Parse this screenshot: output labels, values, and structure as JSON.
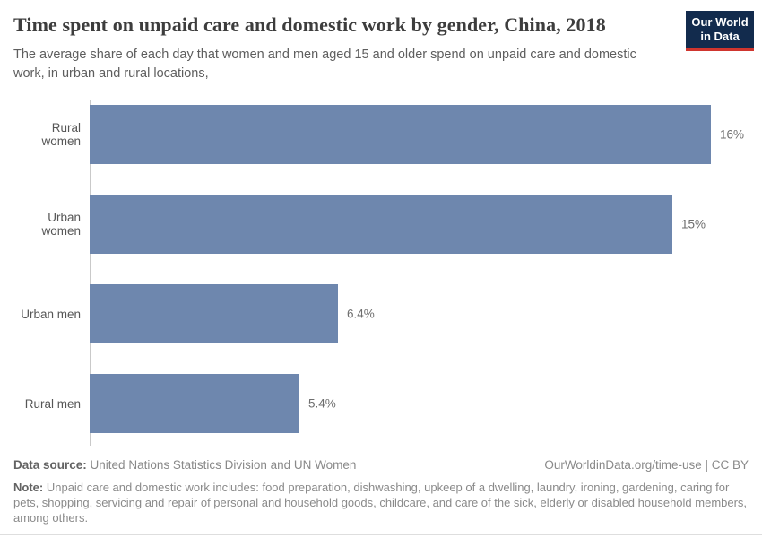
{
  "header": {
    "title": "Time spent on unpaid care and domestic work by gender, China, 2018",
    "subtitle": "The average share of each day that women and men aged 15 and older spend on unpaid care and domestic work, in urban and rural locations,",
    "logo": {
      "line1": "Our World",
      "line2": "in Data",
      "bg_color": "#122b4d",
      "accent_color": "#cf352e"
    }
  },
  "chart_data": {
    "type": "bar",
    "orientation": "horizontal",
    "title": "Time spent on unpaid care and domestic work by gender, China, 2018",
    "categories": [
      "Rural women",
      "Urban women",
      "Urban men",
      "Rural men"
    ],
    "values": [
      16,
      15,
      6.4,
      5.4
    ],
    "value_labels": [
      "16%",
      "15%",
      "6.4%",
      "5.4%"
    ],
    "unit": "%",
    "xlim": [
      0,
      16
    ],
    "grid": false,
    "legend": "none",
    "bar_color": "#6e87ae",
    "axis_line_color": "#c9c9c9"
  },
  "footer": {
    "source_label": "Data source:",
    "source_text": "United Nations Statistics Division and UN Women",
    "attribution": "OurWorldinData.org/time-use | CC BY",
    "note_label": "Note:",
    "note_text": "Unpaid care and domestic work includes: food preparation, dishwashing, upkeep of a dwelling, laundry, ironing, gardening, caring for pets, shopping, servicing and repair of personal and household goods, childcare, and care of the sick, elderly or disabled household members, among others."
  }
}
